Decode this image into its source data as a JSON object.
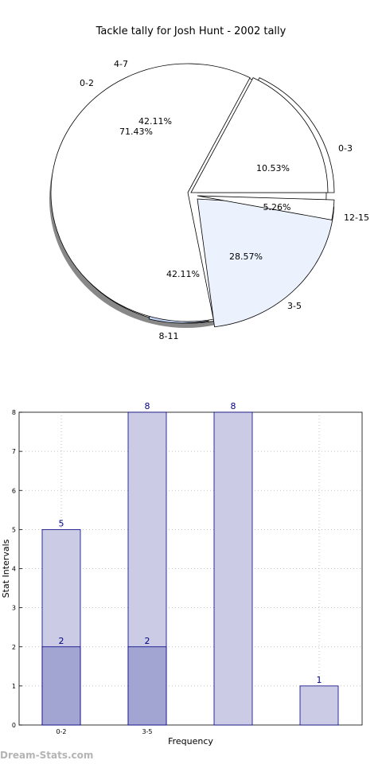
{
  "colors": {
    "pie_fill": [
      "#ffffff",
      "#ffffff",
      "#ffffff",
      "#ffffff",
      "#ebf1fd",
      "#c6d9fa"
    ],
    "bar_light": "#cbcbe6",
    "bar_dark": "#a2a4d2",
    "bar_edge": "#000080",
    "bar_label": "#000080",
    "shadow": "#888888",
    "watermark": "#b4b4b4"
  },
  "watermark": "Dream-Stats.com",
  "chart_data": [
    {
      "type": "pie",
      "title": "Tackle tally for Josh Hunt - 2002 tally",
      "rings": [
        {
          "name": "outer",
          "slices": [
            {
              "label": "0-3",
              "value": 10.53,
              "pct_label": "10.53%"
            },
            {
              "label": "12-15",
              "value": 5.26,
              "pct_label": "5.26%"
            },
            {
              "label": "8-11",
              "value": 42.11,
              "pct_label": "42.11%"
            },
            {
              "label": "4-7",
              "value": 42.11,
              "pct_label": "42.11%"
            }
          ]
        },
        {
          "name": "inner",
          "slices": [
            {
              "label": "3-5",
              "value": 28.57,
              "pct_label": "28.57%"
            },
            {
              "label": "0-2",
              "value": 71.43,
              "pct_label": "71.43%"
            }
          ]
        }
      ]
    },
    {
      "type": "bar",
      "xlabel": "Frequency",
      "ylabel": "Stat Intervals",
      "ylim": [
        0,
        8
      ],
      "yticks": [
        "0",
        "1",
        "2",
        "3",
        "4",
        "5",
        "6",
        "7",
        "8"
      ],
      "grid": true,
      "groups": [
        {
          "tick": "0-2",
          "light": 5,
          "dark": 2,
          "light_label": "5",
          "dark_label": "2"
        },
        {
          "tick": "3-5",
          "light": 8,
          "dark": 2,
          "light_label": "8",
          "dark_label": "2"
        },
        {
          "tick": "",
          "light": 8,
          "dark": null,
          "light_label": "8",
          "dark_label": ""
        },
        {
          "tick": "",
          "light": 1,
          "dark": null,
          "light_label": "1",
          "dark_label": ""
        }
      ]
    }
  ]
}
